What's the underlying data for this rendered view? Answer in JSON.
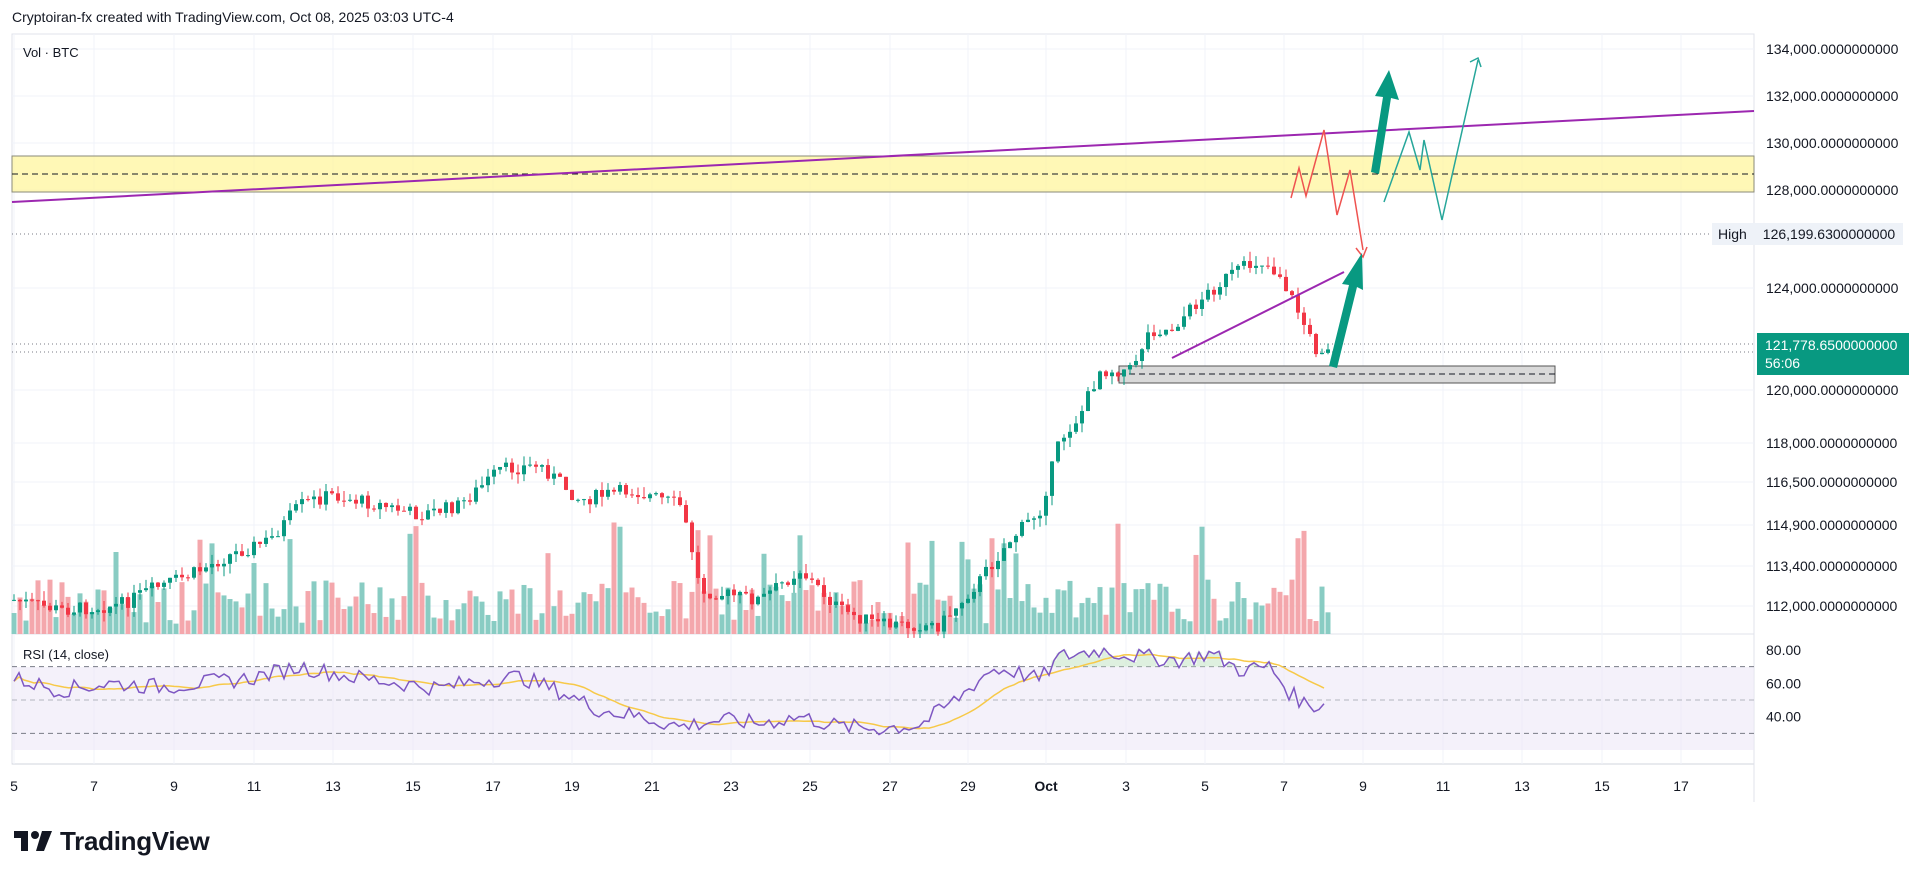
{
  "header": {
    "title": "Cryptoiran-fx created with TradingView.com, Oct 08, 2025 03:03 UTC-4"
  },
  "main_pane": {
    "label": "Vol · BTC",
    "price_axis_ticks": [
      {
        "label": "134,000.0000000000",
        "value": 134000
      },
      {
        "label": "132,000.0000000000",
        "value": 132000
      },
      {
        "label": "130,000.0000000000",
        "value": 130000
      },
      {
        "label": "128,000.0000000000",
        "value": 128000
      },
      {
        "label": "124,000.0000000000",
        "value": 124000
      },
      {
        "label": "120,000.0000000000",
        "value": 120000
      },
      {
        "label": "118,000.0000000000",
        "value": 118000
      },
      {
        "label": "116,500.0000000000",
        "value": 116500
      },
      {
        "label": "114,900.0000000000",
        "value": 114900
      },
      {
        "label": "113,400.0000000000",
        "value": 113400
      },
      {
        "label": "112,000.0000000000",
        "value": 112000
      }
    ],
    "high_label": "High",
    "high_value": "126,199.6300000000",
    "last_price": "121,778.6500000000",
    "countdown": "56:06",
    "colors": {
      "up": "#089981",
      "down": "#f23645",
      "trendline": "#9c27b0",
      "resistance_zone": "#fff59d",
      "arrow": "#089981"
    }
  },
  "rsi_pane": {
    "label": "RSI (14, close)",
    "ticks": [
      {
        "label": "80.00",
        "value": 80
      },
      {
        "label": "60.00",
        "value": 60
      },
      {
        "label": "40.00",
        "value": 40
      }
    ],
    "bands": [
      70,
      50,
      30
    ],
    "colors": {
      "rsi": "#7e57c2",
      "ma": "#f7c948"
    }
  },
  "time_axis": {
    "labels": [
      "5",
      "7",
      "9",
      "11",
      "13",
      "15",
      "17",
      "19",
      "21",
      "23",
      "25",
      "27",
      "29",
      "Oct",
      "3",
      "5",
      "7",
      "9",
      "11",
      "13",
      "15",
      "17"
    ]
  },
  "branding": {
    "logo_text": "TradingView"
  }
}
